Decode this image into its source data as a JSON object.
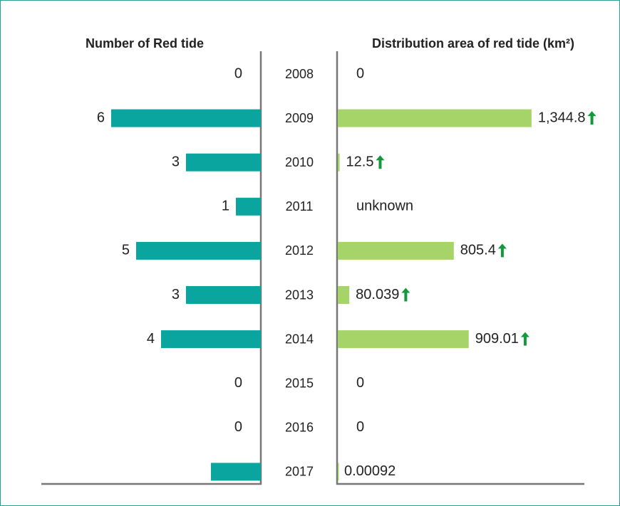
{
  "chart_data": {
    "type": "bar",
    "orientation": "horizontal",
    "categories": [
      "2008",
      "2009",
      "2010",
      "2011",
      "2012",
      "2013",
      "2014",
      "2015",
      "2016",
      "2017"
    ],
    "series": [
      {
        "name": "Number of Red tide",
        "color": "#0aa59e",
        "direction": "left",
        "values": [
          0,
          6,
          3,
          1,
          5,
          3,
          4,
          0,
          0,
          2
        ],
        "value_labels": [
          "0",
          "6",
          "3",
          "1",
          "5",
          "3",
          "4",
          "0",
          "0",
          null
        ],
        "xlim": [
          0,
          7
        ]
      },
      {
        "name": "Distribution area of red tide (km²)",
        "color": "#a6d468",
        "direction": "right",
        "values": [
          0,
          1344.8,
          12.5,
          null,
          805.4,
          80.039,
          909.01,
          0,
          0,
          0.00092
        ],
        "value_labels": [
          "0",
          "1,344.8",
          "12.5",
          "unknown",
          "805.4",
          "80.039",
          "909.01",
          "0",
          "0",
          "0.00092"
        ],
        "up_arrows": [
          false,
          true,
          true,
          false,
          true,
          true,
          true,
          false,
          false,
          false
        ],
        "arrow_color": "#119a3c",
        "xlim": [
          0,
          1400
        ]
      }
    ]
  }
}
